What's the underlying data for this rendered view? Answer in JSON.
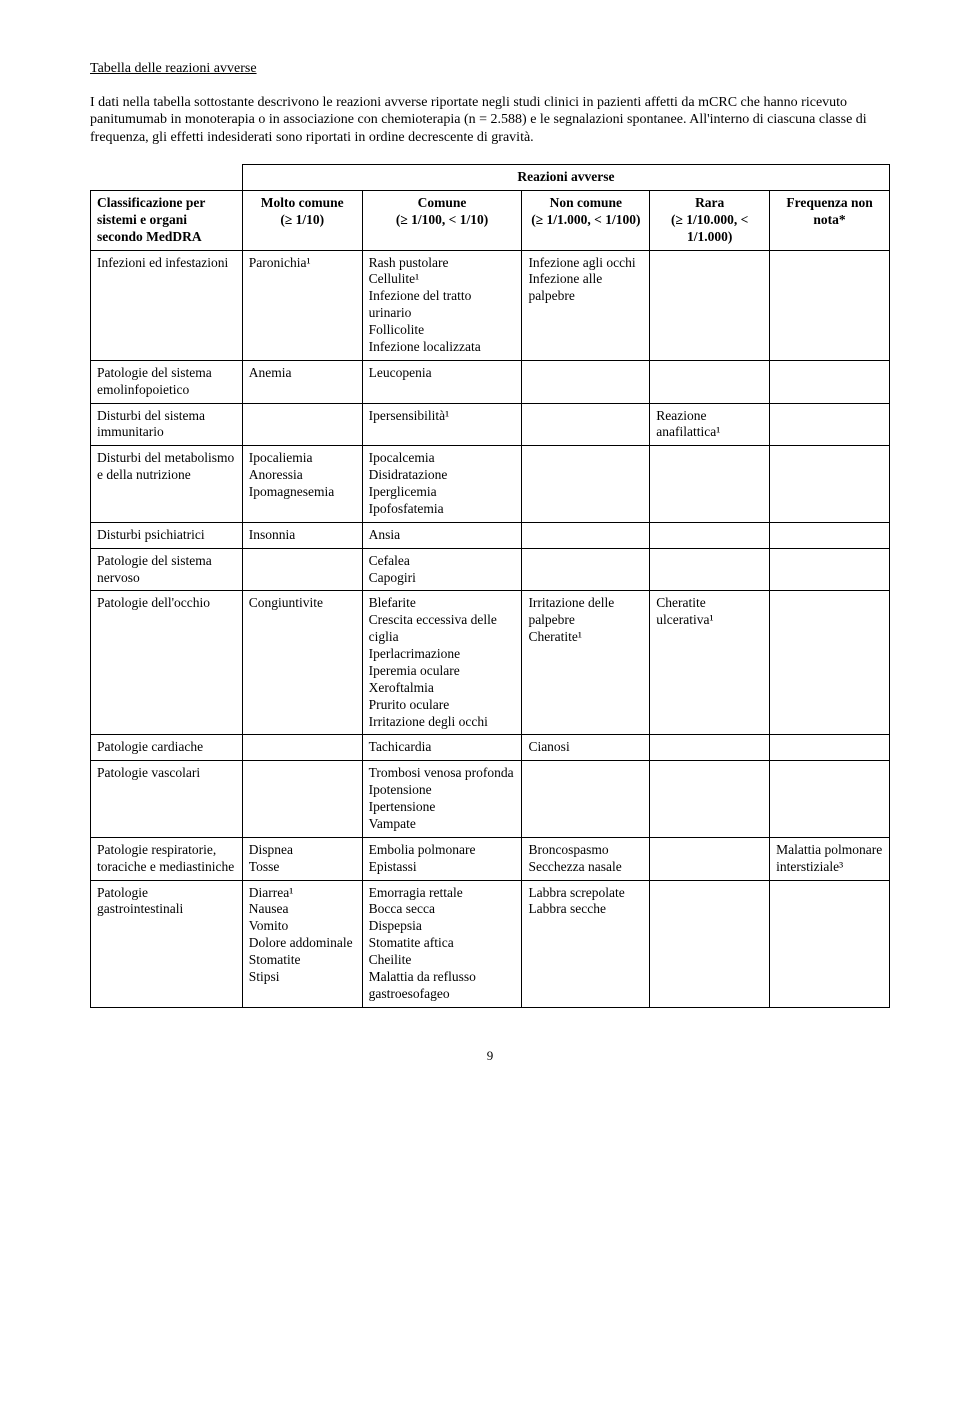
{
  "title": "Tabella delle reazioni avverse",
  "intro": "I dati nella tabella sottostante descrivono le reazioni avverse riportate negli studi clinici in pazienti affetti da mCRC che hanno ricevuto panitumumab in monoterapia o in associazione con chemioterapia (n = 2.588) e le segnalazioni spontanee. All'interno di ciascuna classe di frequenza, gli effetti indesiderati sono riportati in ordine decrescente di gravità.",
  "span_header": "Reazioni avverse",
  "headers": {
    "c0": "Classificazione per sistemi e organi secondo MedDRA",
    "c1a": "Molto comune",
    "c1b": "(≥ 1/10)",
    "c2a": "Comune",
    "c2b": "(≥ 1/100, < 1/10)",
    "c3a": "Non comune",
    "c3b": "(≥ 1/1.000, < 1/100)",
    "c4a": "Rara",
    "c4b": "(≥ 1/10.000, < 1/1.000)",
    "c5a": "Frequenza non nota*"
  },
  "rows": [
    {
      "c0": "Infezioni ed infestazioni",
      "c1": "Paronichia¹",
      "c2": "Rash pustolare\nCellulite¹\nInfezione del tratto urinario\nFollicolite\nInfezione localizzata",
      "c3": "Infezione agli occhi\nInfezione alle palpebre",
      "c4": "",
      "c5": ""
    },
    {
      "c0": "Patologie del sistema emolinfopoietico",
      "c1": "Anemia",
      "c2": "Leucopenia",
      "c3": "",
      "c4": "",
      "c5": ""
    },
    {
      "c0": "Disturbi del sistema immunitario",
      "c1": "",
      "c2": "Ipersensibilità¹",
      "c3": "",
      "c4": "Reazione anafilattica¹",
      "c5": ""
    },
    {
      "c0": "Disturbi del metabolismo e della nutrizione",
      "c1": "Ipocaliemia\nAnoressia\nIpomagnesemia",
      "c2": "Ipocalcemia\nDisidratazione\nIperglicemia\nIpofosfatemia",
      "c3": "",
      "c4": "",
      "c5": ""
    },
    {
      "c0": "Disturbi psichiatrici",
      "c1": "Insonnia",
      "c2": "Ansia",
      "c3": "",
      "c4": "",
      "c5": ""
    },
    {
      "c0": "Patologie del sistema nervoso",
      "c1": "",
      "c2": "Cefalea\nCapogiri",
      "c3": "",
      "c4": "",
      "c5": ""
    },
    {
      "c0": "Patologie dell'occhio",
      "c1": "Congiuntivite",
      "c2": "Blefarite\nCrescita eccessiva delle ciglia\nIperlacrimazione\nIperemia oculare\nXeroftalmia\nPrurito oculare\nIrritazione degli occhi",
      "c3": "Irritazione delle palpebre\nCheratite¹",
      "c4": "Cheratite ulcerativa¹",
      "c5": ""
    },
    {
      "c0": "Patologie cardiache",
      "c1": "",
      "c2": "Tachicardia",
      "c3": "Cianosi",
      "c4": "",
      "c5": ""
    },
    {
      "c0": "Patologie vascolari",
      "c1": "",
      "c2": "Trombosi venosa profonda\nIpotensione\nIpertensione\nVampate",
      "c3": "",
      "c4": "",
      "c5": ""
    },
    {
      "c0": "Patologie respiratorie, toraciche e mediastiniche",
      "c1": "Dispnea\nTosse",
      "c2": "Embolia polmonare\nEpistassi",
      "c3": "Broncospasmo\nSecchezza nasale",
      "c4": "",
      "c5": "Malattia polmonare interstiziale³"
    },
    {
      "c0": "Patologie gastrointestinali",
      "c1": "Diarrea¹\nNausea\nVomito\nDolore addominale\nStomatite\nStipsi",
      "c2": "Emorragia rettale\nBocca secca\nDispepsia\nStomatite aftica\nCheilite\nMalattia da reflusso gastroesofageo",
      "c3": "Labbra screpolate\nLabbra secche",
      "c4": "",
      "c5": ""
    }
  ],
  "page_number": "9",
  "col_widths": [
    "19%",
    "15%",
    "20%",
    "16%",
    "15%",
    "15%"
  ]
}
